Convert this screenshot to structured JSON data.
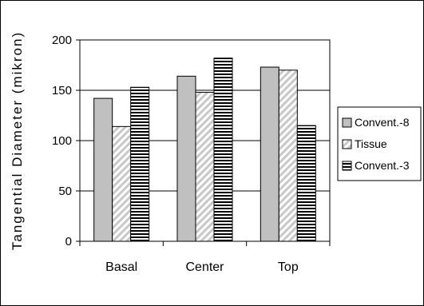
{
  "chart_data": {
    "type": "bar",
    "title": "",
    "xlabel": "",
    "ylabel": "Tangential Diameter (mikron)",
    "ylim": [
      0,
      200
    ],
    "yticks": [
      0,
      50,
      100,
      150,
      200
    ],
    "grid": true,
    "legend_position": "right",
    "categories": [
      "Basal",
      "Center",
      "Top"
    ],
    "series": [
      {
        "name": "Convent.-8",
        "values": [
          142,
          164,
          173
        ],
        "fill": "#c0c0c0",
        "pattern": "solid"
      },
      {
        "name": "Tissue",
        "values": [
          114,
          148,
          170
        ],
        "fill": "#ffffff",
        "pattern": "diagonal"
      },
      {
        "name": "Convent.-3",
        "values": [
          153,
          182,
          115
        ],
        "fill": "#000000",
        "pattern": "horizontal"
      }
    ]
  }
}
